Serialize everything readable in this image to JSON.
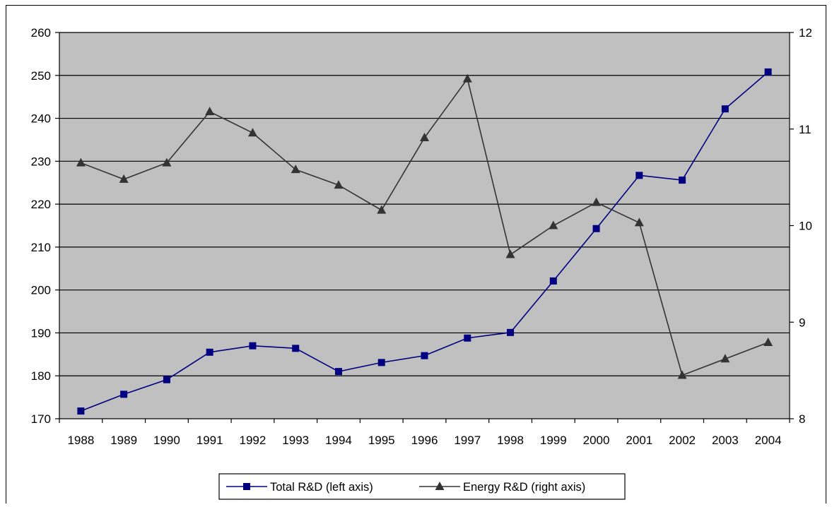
{
  "chart_data": {
    "type": "line",
    "categories": [
      "1988",
      "1989",
      "1990",
      "1991",
      "1992",
      "1993",
      "1994",
      "1995",
      "1996",
      "1997",
      "1998",
      "1999",
      "2000",
      "2001",
      "2002",
      "2003",
      "2004"
    ],
    "y_left": {
      "min": 170,
      "max": 260,
      "step": 10,
      "ticks": [
        "170",
        "180",
        "190",
        "200",
        "210",
        "220",
        "230",
        "240",
        "250",
        "260"
      ]
    },
    "y_right": {
      "min": 8,
      "max": 12,
      "step": 1,
      "ticks": [
        "8",
        "9",
        "10",
        "11",
        "12"
      ]
    },
    "series": [
      {
        "name": "Total R&D (left axis)",
        "axis": "left",
        "color": "#000080",
        "marker": "square",
        "values": [
          171.8,
          175.7,
          179.1,
          185.5,
          187.0,
          186.4,
          181.0,
          183.1,
          184.7,
          188.8,
          190.1,
          202.1,
          214.3,
          226.7,
          225.6,
          242.2,
          250.8
        ]
      },
      {
        "name": "Energy R&D (right axis)",
        "axis": "right",
        "color": "#333333",
        "marker": "triangle",
        "values": [
          10.65,
          10.48,
          10.65,
          11.18,
          10.96,
          10.58,
          10.42,
          10.16,
          10.91,
          11.52,
          9.7,
          10.0,
          10.24,
          10.03,
          8.45,
          8.62,
          8.79
        ]
      }
    ],
    "grid": true,
    "plot_background": "#c0c0c0",
    "legend_position": "bottom"
  }
}
